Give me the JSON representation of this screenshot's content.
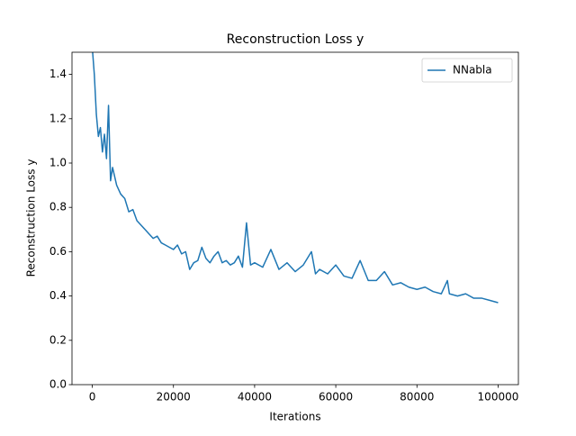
{
  "chart_data": {
    "type": "line",
    "title": "Reconstruction Loss y",
    "x_label": "Iterations",
    "y_label": "Reconstruction Loss y",
    "x": [
      0,
      500,
      1000,
      1500,
      2000,
      2500,
      3000,
      3500,
      4000,
      4500,
      5000,
      6000,
      7000,
      8000,
      9000,
      10000,
      11000,
      12000,
      13000,
      14000,
      15000,
      16000,
      17000,
      18000,
      19000,
      20000,
      21000,
      22000,
      23000,
      24000,
      25000,
      26000,
      27000,
      28000,
      29000,
      30000,
      31000,
      32000,
      33000,
      34000,
      35000,
      36000,
      37000,
      38000,
      39000,
      40000,
      42000,
      44000,
      46000,
      48000,
      50000,
      52000,
      54000,
      55000,
      56000,
      58000,
      60000,
      62000,
      64000,
      66000,
      68000,
      70000,
      72000,
      74000,
      76000,
      78000,
      80000,
      82000,
      84000,
      86000,
      87500,
      88000,
      90000,
      92000,
      94000,
      96000,
      98000,
      100000
    ],
    "series": [
      {
        "name": "NNabla",
        "color": "#1f77b4",
        "values": [
          1.52,
          1.4,
          1.22,
          1.12,
          1.16,
          1.05,
          1.13,
          1.02,
          1.26,
          0.92,
          0.98,
          0.9,
          0.86,
          0.84,
          0.78,
          0.79,
          0.74,
          0.72,
          0.7,
          0.68,
          0.66,
          0.67,
          0.64,
          0.63,
          0.62,
          0.61,
          0.63,
          0.59,
          0.6,
          0.52,
          0.55,
          0.56,
          0.62,
          0.57,
          0.55,
          0.58,
          0.6,
          0.55,
          0.56,
          0.54,
          0.55,
          0.58,
          0.53,
          0.73,
          0.54,
          0.55,
          0.53,
          0.61,
          0.52,
          0.55,
          0.51,
          0.54,
          0.6,
          0.5,
          0.52,
          0.5,
          0.54,
          0.49,
          0.48,
          0.56,
          0.47,
          0.47,
          0.51,
          0.45,
          0.46,
          0.44,
          0.43,
          0.44,
          0.42,
          0.41,
          0.47,
          0.41,
          0.4,
          0.41,
          0.39,
          0.39,
          0.38,
          0.37
        ]
      }
    ],
    "xlim": [
      -5000,
      105000
    ],
    "xticks": [
      0,
      20000,
      40000,
      60000,
      80000,
      100000
    ],
    "ylim": [
      0,
      1.5
    ],
    "yticks": [
      {
        "value": 0,
        "label": "0.0"
      },
      0.2,
      0.4,
      0.6,
      0.8,
      {
        "value": 1,
        "label": "1.0"
      },
      1.2,
      1.4
    ],
    "legend": "upper right"
  }
}
